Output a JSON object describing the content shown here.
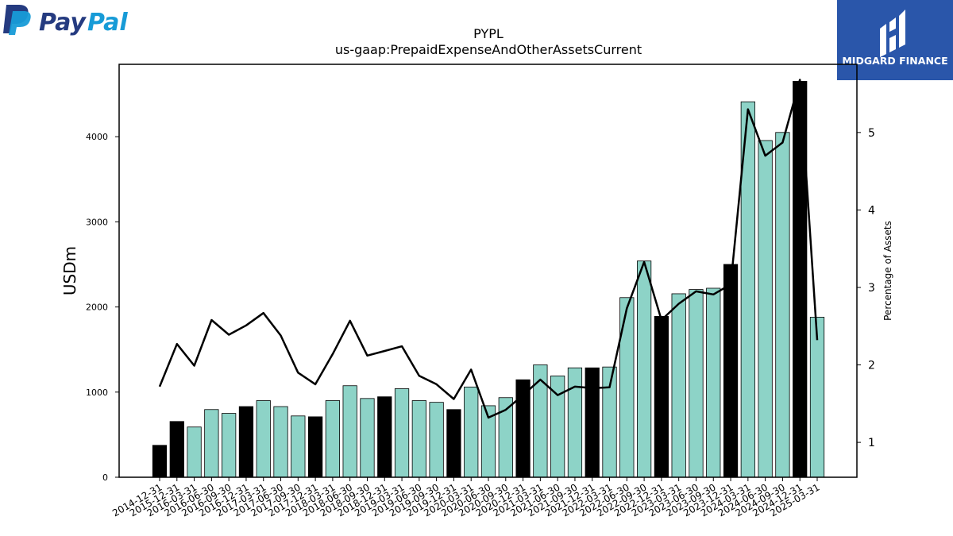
{
  "brand": {
    "left_logo_text_a": "Pay",
    "left_logo_text_b": "Pal",
    "right_logo_text": "MIDGARD FINANCE",
    "colors": {
      "paypal_dark": "#253b80",
      "paypal_light": "#179bd7",
      "midgard_bg": "#2a56aa"
    }
  },
  "chart_data": {
    "type": "bar",
    "title": "PYPL",
    "subtitle": "us-gaap:PrepaidExpenseAndOtherAssetsCurrent",
    "ylabel": "USDm",
    "y2label": "Percentage of Assets",
    "ylim": [
      0,
      4850
    ],
    "y2lim": [
      0.55,
      5.88
    ],
    "yticks": [
      0,
      1000,
      2000,
      3000,
      4000
    ],
    "y2ticks": [
      1,
      2,
      3,
      4,
      5
    ],
    "colors": {
      "q4_bar": "#000000",
      "other_bar": "#8dd3c7",
      "line": "#000000"
    },
    "categories": [
      "2014-12-31",
      "2015-12-31",
      "2016-03-31",
      "2016-06-30",
      "2016-09-30",
      "2016-12-31",
      "2017-03-31",
      "2017-06-30",
      "2017-09-30",
      "2017-12-31",
      "2018-03-31",
      "2018-06-30",
      "2018-09-30",
      "2018-12-31",
      "2019-03-31",
      "2019-06-30",
      "2019-09-30",
      "2019-12-31",
      "2020-03-31",
      "2020-06-30",
      "2020-09-30",
      "2020-12-31",
      "2021-03-31",
      "2021-06-30",
      "2021-09-30",
      "2021-12-31",
      "2022-03-31",
      "2022-06-30",
      "2022-09-30",
      "2022-12-31",
      "2023-03-31",
      "2023-06-30",
      "2023-09-30",
      "2023-12-31",
      "2024-03-31",
      "2024-06-30",
      "2024-09-30",
      "2024-12-31",
      "2025-03-31"
    ],
    "series": [
      {
        "kind": "bar",
        "values": [
          375,
          655,
          590,
          795,
          750,
          830,
          900,
          830,
          720,
          710,
          900,
          1075,
          925,
          945,
          1040,
          900,
          880,
          795,
          1060,
          840,
          935,
          1145,
          1320,
          1190,
          1285,
          1285,
          1295,
          2110,
          2540,
          1890,
          2155,
          2205,
          2220,
          2500,
          4410,
          3955,
          4050,
          4650,
          1880
        ]
      },
      {
        "kind": "line",
        "axis": "right",
        "values": [
          1.72,
          2.27,
          1.99,
          2.58,
          2.39,
          2.51,
          2.67,
          2.38,
          1.9,
          1.75,
          2.14,
          2.57,
          2.12,
          2.18,
          2.24,
          1.86,
          1.75,
          1.56,
          1.94,
          1.32,
          1.42,
          1.61,
          1.81,
          1.61,
          1.72,
          1.7,
          1.71,
          2.73,
          3.33,
          2.58,
          2.79,
          2.95,
          2.91,
          3.04,
          5.3,
          4.7,
          4.87,
          5.68,
          2.32
        ]
      }
    ]
  }
}
